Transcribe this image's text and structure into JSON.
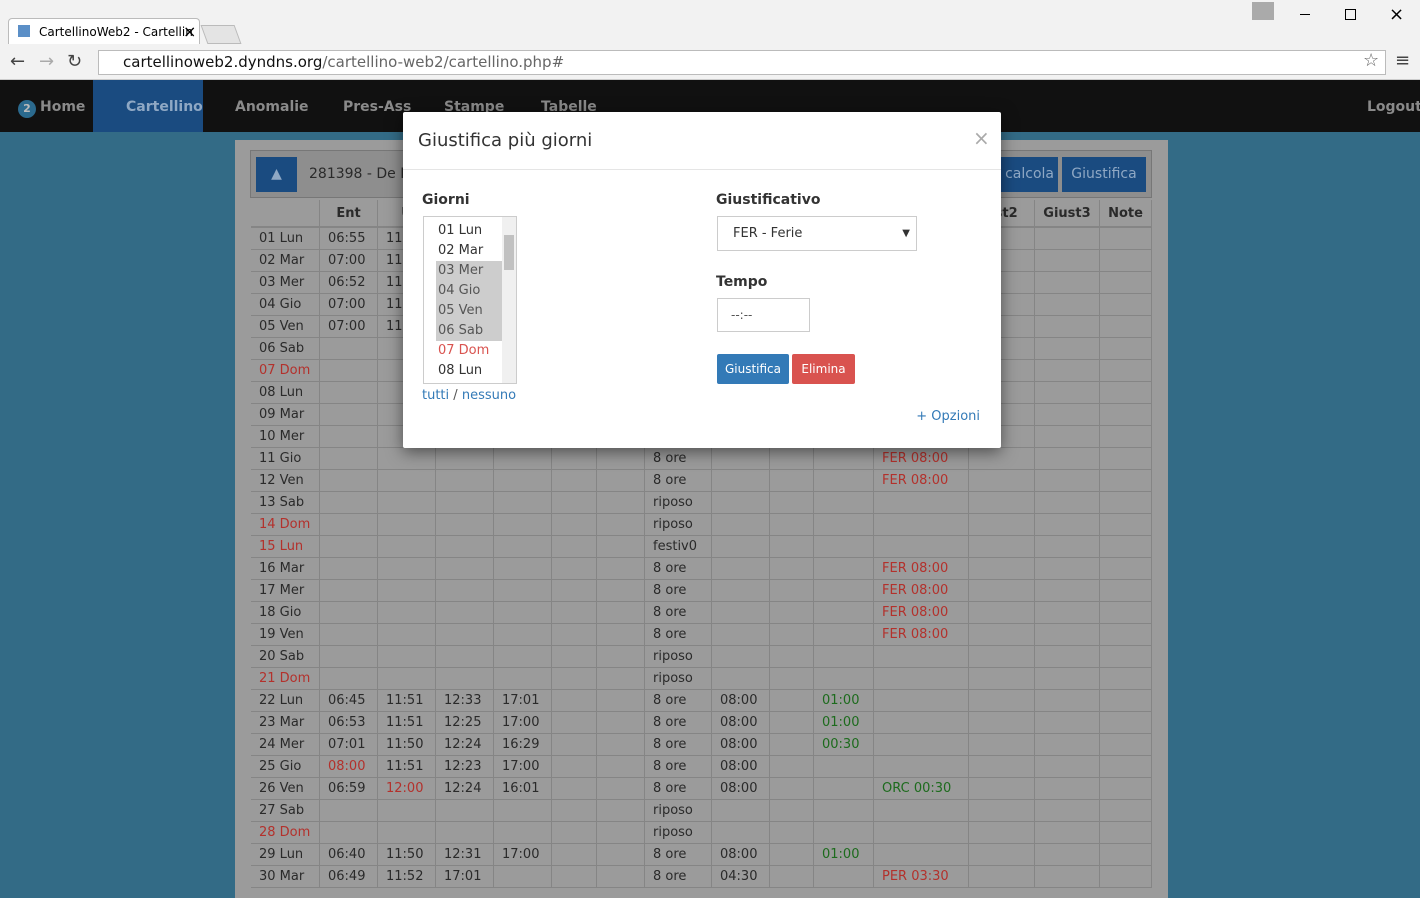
{
  "browser": {
    "tab_title": "CartellinoWeb2 - Cartellin",
    "url_host": "cartellinoweb2.dyndns.org",
    "url_path": "/cartellino-web2/cartellino.php#"
  },
  "nav": {
    "badge": "2",
    "items": [
      "Home",
      "Cartellino",
      "Anomalie",
      "Pres-Ass",
      "Stampe",
      "Tabelle"
    ],
    "logout": "Logout"
  },
  "toolbar": {
    "employee": "281398 - De Ro",
    "buttons": [
      "calcola",
      "Giustifica"
    ]
  },
  "table": {
    "header": [
      null,
      "Ent",
      "U",
      null,
      null,
      null,
      null,
      null,
      null,
      null,
      null,
      null,
      "ust2",
      "Giust3",
      "Note"
    ],
    "rows": [
      {
        "day": "01 Lun",
        "cells": [
          "06:55",
          "11",
          null,
          null,
          null,
          null,
          null,
          null,
          null,
          null,
          null,
          null,
          null,
          null
        ]
      },
      {
        "day": "02 Mar",
        "cells": [
          "07:00",
          "11",
          null,
          null,
          null,
          null,
          null,
          null,
          null,
          null,
          null,
          null,
          null,
          null
        ]
      },
      {
        "day": "03 Mer",
        "cells": [
          "06:52",
          "11",
          null,
          null,
          null,
          null,
          null,
          null,
          null,
          null,
          null,
          null,
          null,
          null
        ]
      },
      {
        "day": "04 Gio",
        "cells": [
          "07:00",
          "11",
          null,
          null,
          null,
          null,
          null,
          null,
          null,
          null,
          null,
          null,
          null,
          null
        ]
      },
      {
        "day": "05 Ven",
        "cells": [
          "07:00",
          "11",
          null,
          null,
          null,
          null,
          null,
          null,
          null,
          null,
          null,
          null,
          null,
          null
        ]
      },
      {
        "day": "06 Sab",
        "cells": [
          null,
          null,
          null,
          null,
          null,
          null,
          null,
          null,
          null,
          null,
          null,
          null,
          null,
          null
        ]
      },
      {
        "day": "07 Dom",
        "day_color": "#b3312c",
        "cells": [
          null,
          null,
          null,
          null,
          null,
          null,
          null,
          null,
          null,
          null,
          null,
          null,
          null,
          null
        ]
      },
      {
        "day": "08 Lun",
        "cells": [
          null,
          null,
          null,
          null,
          null,
          null,
          null,
          null,
          null,
          null,
          null,
          null,
          null,
          null
        ]
      },
      {
        "day": "09 Mar",
        "cells": [
          null,
          null,
          null,
          null,
          null,
          null,
          null,
          null,
          null,
          null,
          null,
          null,
          null,
          null
        ]
      },
      {
        "day": "10 Mer",
        "cells": [
          null,
          null,
          null,
          null,
          null,
          null,
          null,
          null,
          null,
          null,
          null,
          null,
          null,
          null
        ]
      },
      {
        "day": "11 Gio",
        "cells": [
          null,
          null,
          null,
          null,
          null,
          null,
          "8 ore",
          null,
          null,
          null,
          {
            "text": "FER 08:00",
            "color": "#b3312c"
          },
          null,
          null,
          null
        ]
      },
      {
        "day": "12 Ven",
        "cells": [
          null,
          null,
          null,
          null,
          null,
          null,
          "8 ore",
          null,
          null,
          null,
          {
            "text": "FER 08:00",
            "color": "#b3312c"
          },
          null,
          null,
          null
        ]
      },
      {
        "day": "13 Sab",
        "cells": [
          null,
          null,
          null,
          null,
          null,
          null,
          "riposo",
          null,
          null,
          null,
          null,
          null,
          null,
          null
        ]
      },
      {
        "day": "14 Dom",
        "day_color": "#b3312c",
        "cells": [
          null,
          null,
          null,
          null,
          null,
          null,
          "riposo",
          null,
          null,
          null,
          null,
          null,
          null,
          null
        ]
      },
      {
        "day": "15 Lun",
        "day_color": "#b3312c",
        "cells": [
          null,
          null,
          null,
          null,
          null,
          null,
          "festiv0",
          null,
          null,
          null,
          null,
          null,
          null,
          null
        ]
      },
      {
        "day": "16 Mar",
        "cells": [
          null,
          null,
          null,
          null,
          null,
          null,
          "8 ore",
          null,
          null,
          null,
          {
            "text": "FER 08:00",
            "color": "#b3312c"
          },
          null,
          null,
          null
        ]
      },
      {
        "day": "17 Mer",
        "cells": [
          null,
          null,
          null,
          null,
          null,
          null,
          "8 ore",
          null,
          null,
          null,
          {
            "text": "FER 08:00",
            "color": "#b3312c"
          },
          null,
          null,
          null
        ]
      },
      {
        "day": "18 Gio",
        "cells": [
          null,
          null,
          null,
          null,
          null,
          null,
          "8 ore",
          null,
          null,
          null,
          {
            "text": "FER 08:00",
            "color": "#b3312c"
          },
          null,
          null,
          null
        ]
      },
      {
        "day": "19 Ven",
        "cells": [
          null,
          null,
          null,
          null,
          null,
          null,
          "8 ore",
          null,
          null,
          null,
          {
            "text": "FER 08:00",
            "color": "#b3312c"
          },
          null,
          null,
          null
        ]
      },
      {
        "day": "20 Sab",
        "cells": [
          null,
          null,
          null,
          null,
          null,
          null,
          "riposo",
          null,
          null,
          null,
          null,
          null,
          null,
          null
        ]
      },
      {
        "day": "21 Dom",
        "day_color": "#b3312c",
        "cells": [
          null,
          null,
          null,
          null,
          null,
          null,
          "riposo",
          null,
          null,
          null,
          null,
          null,
          null,
          null
        ]
      },
      {
        "day": "22 Lun",
        "cells": [
          "06:45",
          "11:51",
          "12:33",
          "17:01",
          null,
          null,
          "8 ore",
          "08:00",
          null,
          {
            "text": "01:00",
            "color": "#1d6b1d"
          },
          null,
          null,
          null,
          null
        ]
      },
      {
        "day": "23 Mar",
        "cells": [
          "06:53",
          "11:51",
          "12:25",
          "17:00",
          null,
          null,
          "8 ore",
          "08:00",
          null,
          {
            "text": "01:00",
            "color": "#1d6b1d"
          },
          null,
          null,
          null,
          null
        ]
      },
      {
        "day": "24 Mer",
        "cells": [
          "07:01",
          "11:50",
          "12:24",
          "16:29",
          null,
          null,
          "8 ore",
          "08:00",
          null,
          {
            "text": "00:30",
            "color": "#1d6b1d"
          },
          null,
          null,
          null,
          null
        ]
      },
      {
        "day": "25 Gio",
        "cells": [
          {
            "text": "08:00",
            "color": "#b3312c"
          },
          "11:51",
          "12:23",
          "17:00",
          null,
          null,
          "8 ore",
          "08:00",
          null,
          null,
          null,
          null,
          null,
          null
        ]
      },
      {
        "day": "26 Ven",
        "cells": [
          "06:59",
          {
            "text": "12:00",
            "color": "#b3312c"
          },
          "12:24",
          "16:01",
          null,
          null,
          "8 ore",
          "08:00",
          null,
          null,
          {
            "text": "ORC 00:30",
            "color": "#1d6b1d"
          },
          null,
          null,
          null
        ]
      },
      {
        "day": "27 Sab",
        "cells": [
          null,
          null,
          null,
          null,
          null,
          null,
          "riposo",
          null,
          null,
          null,
          null,
          null,
          null,
          null
        ]
      },
      {
        "day": "28 Dom",
        "day_color": "#b3312c",
        "cells": [
          null,
          null,
          null,
          null,
          null,
          null,
          "riposo",
          null,
          null,
          null,
          null,
          null,
          null,
          null
        ]
      },
      {
        "day": "29 Lun",
        "cells": [
          "06:40",
          "11:50",
          "12:31",
          "17:00",
          null,
          null,
          "8 ore",
          "08:00",
          null,
          {
            "text": "01:00",
            "color": "#1d6b1d"
          },
          null,
          null,
          null,
          null
        ]
      },
      {
        "day": "30 Mar",
        "cells": [
          "06:49",
          "11:52",
          "17:01",
          null,
          null,
          null,
          "8 ore",
          "04:30",
          null,
          null,
          {
            "text": "PER 03:30",
            "color": "#b3312c"
          },
          null,
          null,
          null
        ]
      }
    ]
  },
  "modal": {
    "title": "Giustifica più giorni",
    "close": "×",
    "days_label": "Giorni",
    "days": [
      {
        "label": "01 Lun"
      },
      {
        "label": "02 Mar"
      },
      {
        "label": "03 Mer",
        "selected": true
      },
      {
        "label": "04 Gio",
        "selected": true
      },
      {
        "label": "05 Ven",
        "selected": true
      },
      {
        "label": "06 Sab",
        "selected": true
      },
      {
        "label": "07 Dom",
        "color": "#d9534f"
      },
      {
        "label": "08 Lun"
      }
    ],
    "select_all": "tutti",
    "separator": "/",
    "select_none": "nessuno",
    "reason_label": "Giustificativo",
    "reason_value": "FER - Ferie",
    "time_label": "Tempo",
    "time_placeholder": "--:--",
    "buttons": [
      "Giustifica",
      "Elimina"
    ],
    "options": "+ Opzioni"
  }
}
